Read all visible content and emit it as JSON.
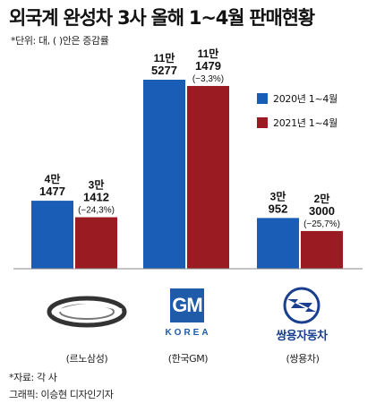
{
  "title": "외국계 완성차 3사 올해 1~4월 판매현황",
  "unit_note": "*단위: 대, ( )안은 증감률",
  "legend": [
    {
      "label": "2020년 1~4월",
      "color": "#1a5db6"
    },
    {
      "label": "2021년 1~4월",
      "color": "#9a1c22"
    }
  ],
  "chart_data": {
    "type": "bar",
    "categories": [
      "르노삼성",
      "한국GM",
      "쌍용차"
    ],
    "category_labels": [
      "(르노삼성)",
      "(한국GM)",
      "(쌍용차)"
    ],
    "series": [
      {
        "name": "2020년 1~4월",
        "values": [
          41477,
          115277,
          30952
        ],
        "labels": [
          [
            "4만",
            "1477"
          ],
          [
            "11만",
            "5277"
          ],
          [
            "3만",
            "952"
          ]
        ]
      },
      {
        "name": "2021년 1~4월",
        "values": [
          31412,
          111479,
          23000
        ],
        "labels": [
          [
            "3만",
            "1412"
          ],
          [
            "11만",
            "1479"
          ],
          [
            "2만",
            "3000"
          ]
        ],
        "changes": [
          "(−24,3%)",
          "(−3,3%)",
          "(−25,7%)"
        ]
      }
    ],
    "ylim": [
      0,
      115277
    ],
    "colors": [
      "#1a5db6",
      "#9a1c22"
    ]
  },
  "logos": {
    "gm_mark": "GM",
    "gm_sub": "KOREA",
    "ssangyong_name": "쌍용자동차",
    "renault_icon": "renault-samsung-logo-icon",
    "ssangyong_icon": "ssangyong-wing-logo-icon"
  },
  "source": "*자료: 각 사",
  "credit": "그래픽: 이승현 디자인기자"
}
